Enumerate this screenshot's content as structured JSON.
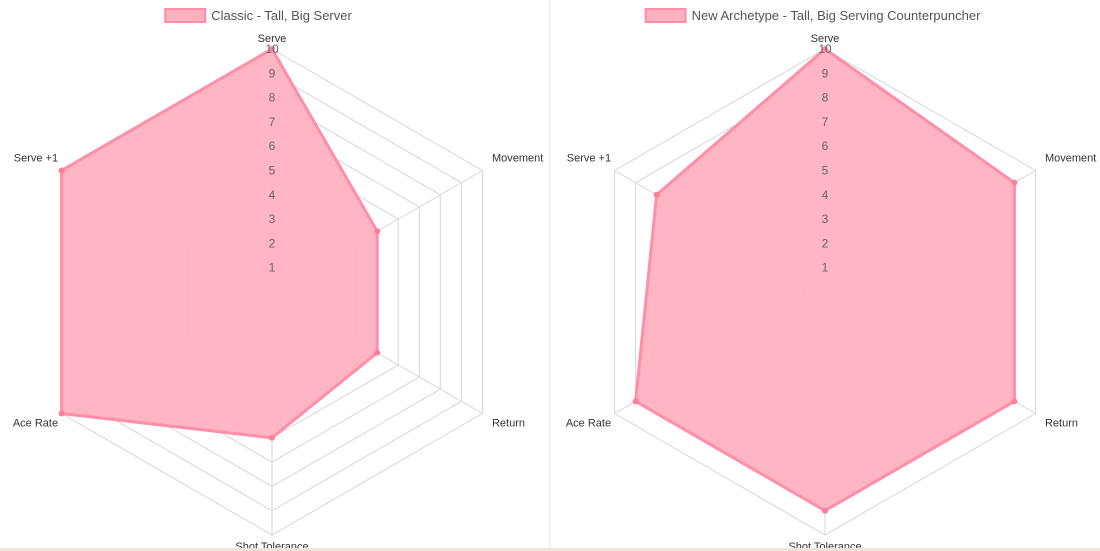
{
  "chart_data": [
    {
      "type": "radar",
      "legend": {
        "label": "Classic - Tall, Big Server",
        "placement": "top-center"
      },
      "categories": [
        "Serve",
        "Movement",
        "Return",
        "Shot Tolerance",
        "Ace Rate",
        "Serve +1"
      ],
      "ticks": [
        "1",
        "2",
        "3",
        "4",
        "5",
        "6",
        "7",
        "8",
        "9",
        "10"
      ],
      "range": [
        0,
        10
      ],
      "series": [
        {
          "name": "Classic - Tall, Big Server",
          "values": [
            10,
            5,
            5,
            6,
            10,
            10
          ]
        }
      ],
      "colors": {
        "fill": "#ffb1c1",
        "stroke": "#ff8fa9",
        "point": "#ff7f98",
        "grid": "#d6d6d6"
      }
    },
    {
      "type": "radar",
      "legend": {
        "label": "New Archetype - Tall, Big Serving Counterpuncher",
        "placement": "top-center"
      },
      "categories": [
        "Serve",
        "Movement",
        "Return",
        "Shot Tolerance",
        "Ace Rate",
        "Serve +1"
      ],
      "ticks": [
        "1",
        "2",
        "3",
        "4",
        "5",
        "6",
        "7",
        "8",
        "9",
        "10"
      ],
      "range": [
        0,
        10
      ],
      "series": [
        {
          "name": "New Archetype - Tall, Big Serving Counterpuncher",
          "values": [
            10,
            9,
            9,
            9,
            9,
            8
          ]
        }
      ],
      "colors": {
        "fill": "#ffb1c1",
        "stroke": "#ff8fa9",
        "point": "#ff7f98",
        "grid": "#d6d6d6"
      }
    }
  ]
}
